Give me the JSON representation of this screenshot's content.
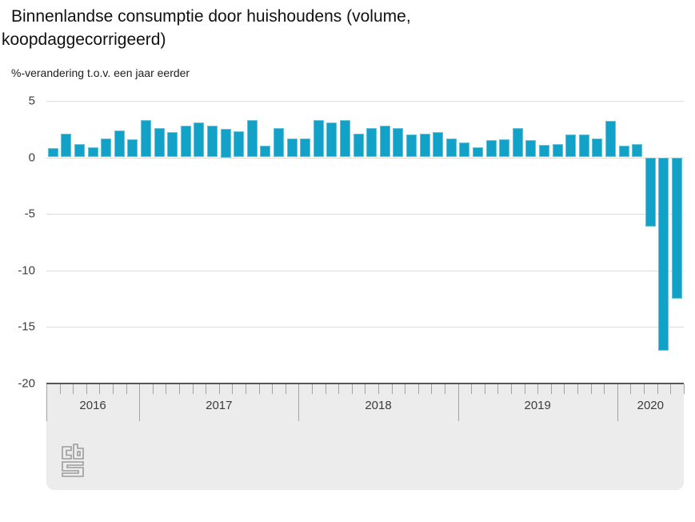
{
  "header": {
    "title_line1": "Binnenlandse consumptie door huishoudens (volume,",
    "title_line2": "koopdaggecorrigeerd)",
    "subtitle": "%-verandering t.o.v. een jaar eerder"
  },
  "colors": {
    "bar": "#12a1c7",
    "grid": "#dcdcdc",
    "band_background": "#ececec",
    "band_border": "#565656",
    "tick": "#a3a3a3",
    "axis_text": "#3c3c3c"
  },
  "footer": {
    "logo": "cbs-logo"
  },
  "chart_data": {
    "type": "bar",
    "title": "Binnenlandse consumptie door huishoudens (volume, koopdaggecorrigeerd)",
    "subtitle": "%-verandering t.o.v. een jaar eerder",
    "unit": "% change year-on-year",
    "ylim": [
      -20,
      5
    ],
    "y_ticks": [
      5,
      0,
      -5,
      -10,
      -15,
      -20
    ],
    "gridline_values": [
      5,
      0,
      -5,
      -10,
      -15
    ],
    "grid": true,
    "legend": "none",
    "bar_color": "#12a1c7",
    "year_groups": [
      {
        "label": "2016",
        "months": 7
      },
      {
        "label": "2017",
        "months": 12
      },
      {
        "label": "2018",
        "months": 12
      },
      {
        "label": "2019",
        "months": 12
      },
      {
        "label": "2020",
        "months": 5
      }
    ],
    "categories": [
      "2016-06",
      "2016-07",
      "2016-08",
      "2016-09",
      "2016-10",
      "2016-11",
      "2016-12",
      "2017-01",
      "2017-02",
      "2017-03",
      "2017-04",
      "2017-05",
      "2017-06",
      "2017-07",
      "2017-08",
      "2017-09",
      "2017-10",
      "2017-11",
      "2017-12",
      "2018-01",
      "2018-02",
      "2018-03",
      "2018-04",
      "2018-05",
      "2018-06",
      "2018-07",
      "2018-08",
      "2018-09",
      "2018-10",
      "2018-11",
      "2018-12",
      "2019-01",
      "2019-02",
      "2019-03",
      "2019-04",
      "2019-05",
      "2019-06",
      "2019-07",
      "2019-08",
      "2019-09",
      "2019-10",
      "2019-11",
      "2019-12",
      "2020-01",
      "2020-02",
      "2020-03",
      "2020-04",
      "2020-05"
    ],
    "values": [
      0.8,
      2.1,
      1.2,
      0.9,
      1.7,
      2.4,
      1.6,
      3.3,
      2.6,
      2.2,
      2.8,
      3.1,
      2.8,
      2.5,
      2.3,
      3.3,
      1.0,
      2.6,
      1.7,
      1.7,
      3.3,
      3.1,
      3.3,
      2.1,
      2.6,
      2.8,
      2.6,
      2.0,
      2.1,
      2.2,
      1.7,
      1.3,
      0.9,
      1.5,
      1.6,
      2.6,
      1.5,
      1.1,
      1.2,
      2.0,
      2.0,
      1.7,
      3.2,
      1.0,
      1.2,
      -6.1,
      -17.1,
      -12.5
    ]
  }
}
